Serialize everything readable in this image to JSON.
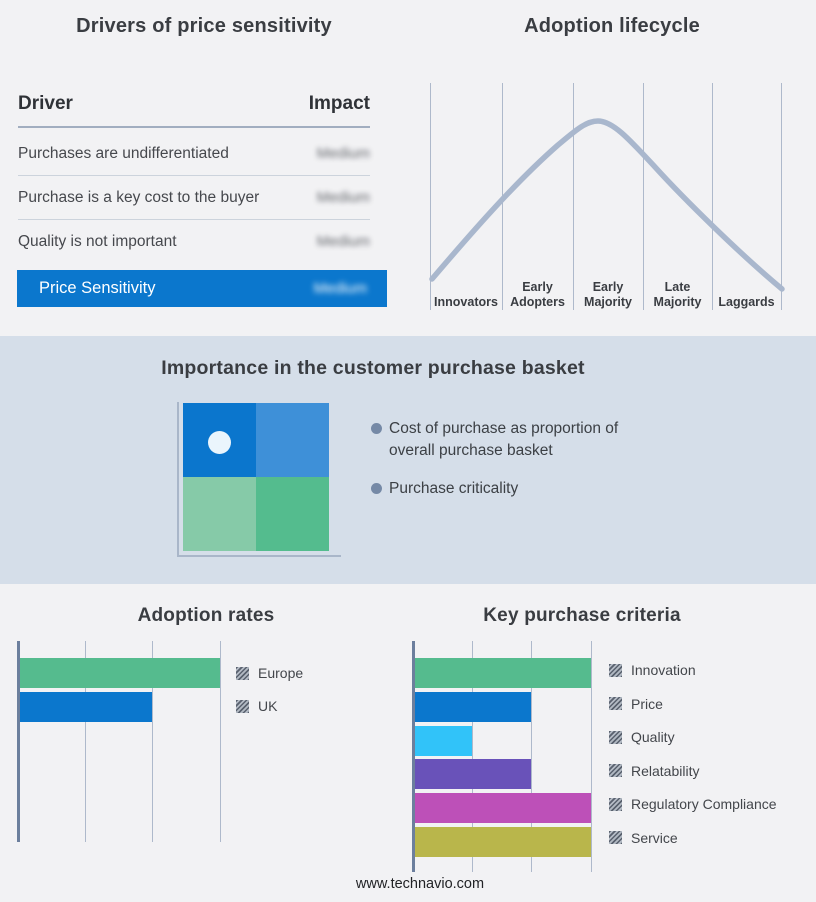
{
  "page": {
    "background": "#f2f2f4",
    "band_background": "#d5dee9"
  },
  "drivers_panel": {
    "title": "Drivers of price sensitivity",
    "columns": {
      "driver": "Driver",
      "impact": "Impact"
    },
    "rows": [
      {
        "driver": "Purchases are undifferentiated",
        "impact": "Medium"
      },
      {
        "driver": "Purchase is a key cost to the buyer",
        "impact": "Medium"
      },
      {
        "driver": "Quality is not important",
        "impact": "Medium"
      }
    ],
    "summary": {
      "label": "Price Sensitivity",
      "impact": "Medium",
      "bar_color": "#0b77cd"
    },
    "note": "Impact values appear blurred (redacted) in the image"
  },
  "lifecycle_panel": {
    "title": "Adoption lifecycle",
    "stages": [
      "Innovators",
      "Early Adopters",
      "Early Majority",
      "Late Majority",
      "Laggards"
    ],
    "curve_color": "#a9b7cd"
  },
  "basket_panel": {
    "title": "Importance in the customer purchase basket",
    "bullets": [
      "Cost of purchase as proportion of overall purchase basket",
      "Purchase criticality"
    ],
    "quadrant_colors": {
      "top_left": "#0b76cd",
      "top_right": "#3e90d8",
      "bottom_left": "#86caa8",
      "bottom_right": "#54bc8e"
    },
    "bullet_color": "#7589a6"
  },
  "adoption_rates_chart": {
    "title": "Adoption rates"
  },
  "key_purchase_chart": {
    "title": "Key purchase criteria"
  },
  "footer": {
    "website": "www.technavio.com"
  },
  "chart_data": [
    {
      "type": "table",
      "title": "Drivers of price sensitivity",
      "columns": [
        "Driver",
        "Impact"
      ],
      "rows": [
        [
          "Purchases are undifferentiated",
          "Medium"
        ],
        [
          "Purchase is a key cost to the buyer",
          "Medium"
        ],
        [
          "Quality is not important",
          "Medium"
        ],
        [
          "Price Sensitivity",
          "Medium"
        ]
      ],
      "note": "All Impact values are shown blurred/redacted in the source image"
    },
    {
      "type": "line",
      "title": "Adoption lifecycle",
      "categories": [
        "Innovators",
        "Early Adopters",
        "Early Majority",
        "Late Majority",
        "Laggards"
      ],
      "description": "Bell-shaped adoption curve over five stage columns, peaking above Early Majority",
      "peak_stage": "Early Majority",
      "grid": "vertical stage separators only",
      "line_color": "#a9b7cd"
    },
    {
      "type": "bar",
      "title": "Adoption rates",
      "orientation": "horizontal",
      "categories": [
        "Europe",
        "UK"
      ],
      "values": [
        3,
        2
      ],
      "xlim": [
        0,
        3
      ],
      "value_units": "relative gridline units (no numeric axis labels shown)",
      "colors": [
        "#55bb8e",
        "#0b77cd"
      ],
      "legend_position": "right",
      "legend_swatch_style": "gray diagonal hatch (redacted)"
    },
    {
      "type": "bar",
      "title": "Key purchase criteria",
      "orientation": "horizontal",
      "categories": [
        "Innovation",
        "Price",
        "Quality",
        "Relatability",
        "Regulatory Compliance",
        "Service"
      ],
      "values": [
        3,
        2,
        1,
        2,
        3,
        3
      ],
      "xlim": [
        0,
        3
      ],
      "value_units": "relative gridline units (no numeric axis labels shown)",
      "colors": [
        "#55bb8e",
        "#0b77cd",
        "#31c3f9",
        "#6952b9",
        "#bd50b8",
        "#b9b64b"
      ],
      "legend_position": "right",
      "legend_swatch_style": "gray diagonal hatch (redacted)"
    }
  ]
}
